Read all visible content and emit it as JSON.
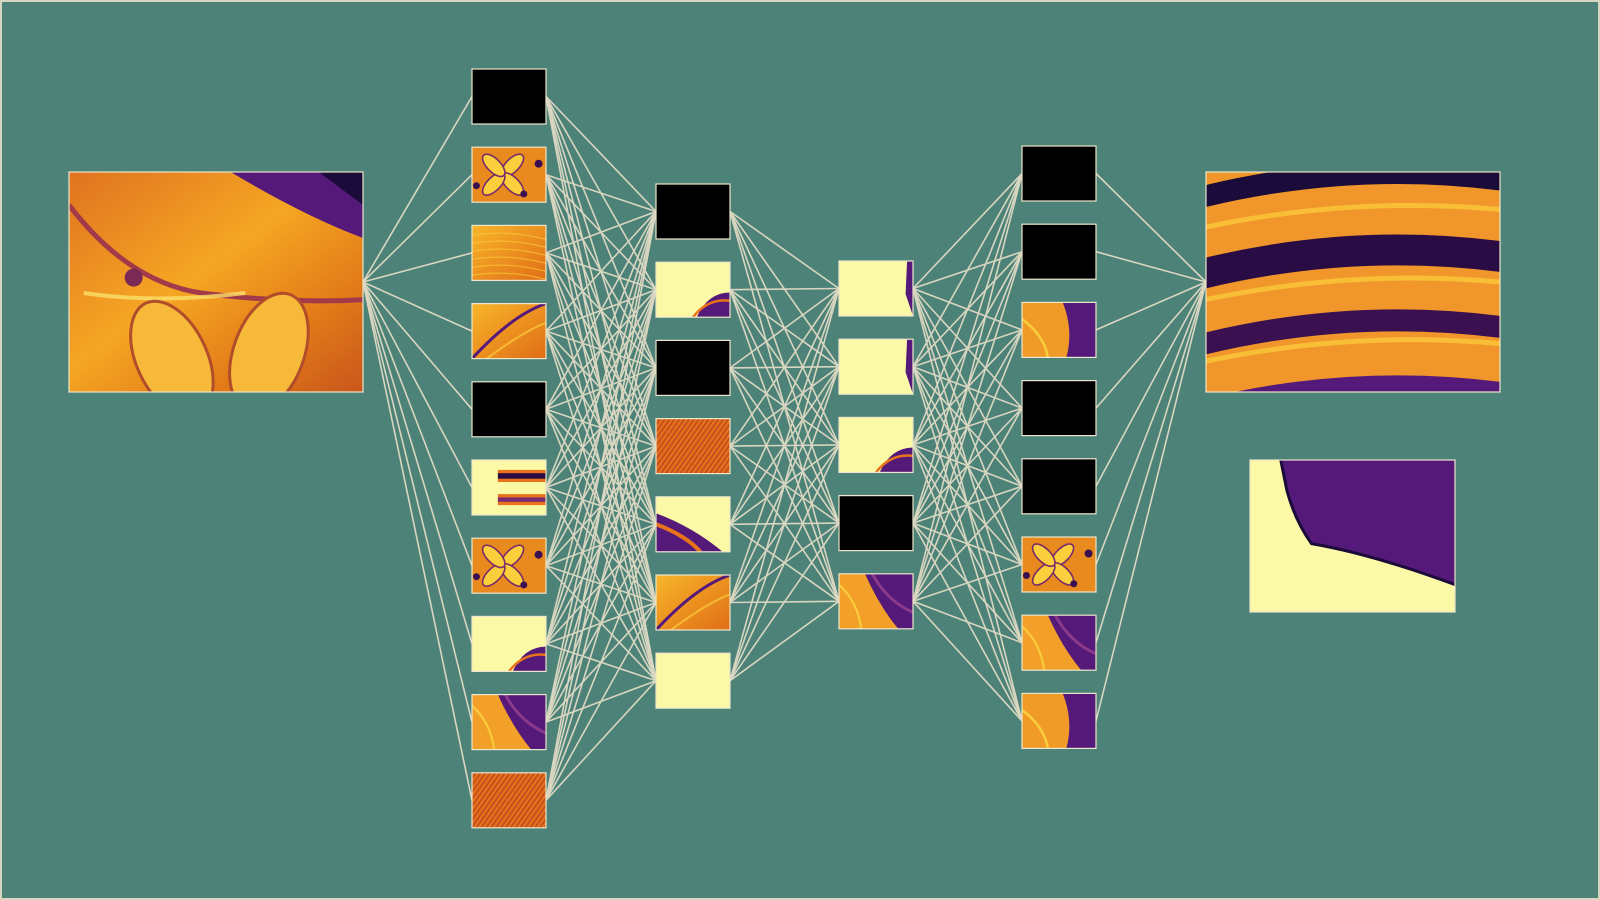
{
  "colors": {
    "background": "#4d8278",
    "edge": "#d8d6c0",
    "node_border": "#ece6cc",
    "inferno_dark": "#1a0b3a",
    "inferno_purple": "#55197a",
    "inferno_orange": "#e9731a",
    "inferno_yellow": "#fbcf3c",
    "inferno_pale": "#fbf9a6",
    "black_node": "#000000"
  },
  "diagram": {
    "input_image": {
      "pattern": "orange-flower"
    },
    "layers": [
      {
        "id": "hidden-1",
        "nodes": [
          "black",
          "flower",
          "orange",
          "orange-fold",
          "black",
          "stripes-pale",
          "flower",
          "pale-corner",
          "purple-fold",
          "texture"
        ]
      },
      {
        "id": "hidden-2",
        "nodes": [
          "black",
          "pale-corner",
          "black",
          "texture",
          "pale-curve",
          "orange-fold",
          "pale"
        ]
      },
      {
        "id": "hidden-3",
        "nodes": [
          "pale-edge",
          "pale-edge",
          "pale-corner",
          "black",
          "purple-fold"
        ]
      },
      {
        "id": "hidden-4",
        "nodes": [
          "black",
          "black",
          "orange-purple",
          "black",
          "black",
          "flower",
          "purple-fold",
          "orange-purple"
        ]
      }
    ],
    "output_image": {
      "pattern": "purple-stripes"
    },
    "detail_image": {
      "pattern": "pale-purple-edge"
    }
  }
}
